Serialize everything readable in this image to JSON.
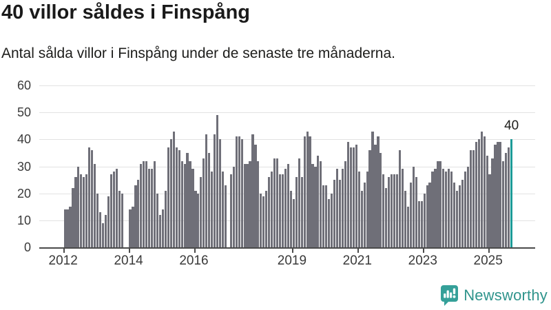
{
  "header": {
    "title": "40 villor såldes i Finspång",
    "subtitle": "Antal sålda villor i Finspång under de senaste tre månaderna."
  },
  "annotation": {
    "last_value_label": "40"
  },
  "footer": {
    "brand": "Newsworthy"
  },
  "chart_data": {
    "type": "bar",
    "title": "40 villor såldes i Finspång",
    "subtitle": "Antal sålda villor i Finspång under de senaste tre månaderna.",
    "frequency": "monthly",
    "start_period": "2012-01",
    "end_period": "2025-09",
    "ylim": [
      0,
      60
    ],
    "grid": true,
    "y_ticks": [
      0,
      10,
      20,
      30,
      40,
      50,
      60
    ],
    "x_ticks": [
      {
        "label": "2012",
        "month_index": 0
      },
      {
        "label": "2014",
        "month_index": 24
      },
      {
        "label": "2016",
        "month_index": 48
      },
      {
        "label": "2019",
        "month_index": 84
      },
      {
        "label": "2021",
        "month_index": 108
      },
      {
        "label": "2023",
        "month_index": 132
      },
      {
        "label": "2025",
        "month_index": 156
      }
    ],
    "values": [
      14,
      14,
      15,
      22,
      26,
      30,
      27,
      26,
      27,
      37,
      36,
      31,
      20,
      13,
      9,
      12,
      19,
      27,
      28,
      29,
      21,
      20,
      null,
      null,
      14,
      15,
      23,
      25,
      31,
      32,
      32,
      29,
      29,
      32,
      20,
      12,
      14,
      21,
      37,
      40,
      43,
      37,
      36,
      32,
      31,
      35,
      32,
      29,
      21,
      20,
      26,
      33,
      42,
      35,
      28,
      42,
      49,
      40,
      28,
      23,
      null,
      27,
      30,
      41,
      41,
      40,
      31,
      31,
      32,
      42,
      38,
      32,
      20,
      19,
      21,
      26,
      28,
      33,
      33,
      27,
      27,
      29,
      31,
      21,
      18,
      26,
      33,
      26,
      41,
      43,
      41,
      31,
      30,
      34,
      32,
      23,
      23,
      18,
      20,
      25,
      29,
      25,
      29,
      32,
      39,
      37,
      37,
      38,
      28,
      21,
      24,
      28,
      36,
      43,
      38,
      41,
      35,
      27,
      22,
      26,
      27,
      27,
      27,
      36,
      29,
      21,
      15,
      24,
      30,
      26,
      17,
      17,
      20,
      23,
      24,
      28,
      29,
      32,
      32,
      29,
      28,
      29,
      28,
      24,
      21,
      23,
      25,
      28,
      30,
      36,
      36,
      39,
      40,
      43,
      41,
      34,
      27,
      33,
      38,
      39,
      39,
      32,
      35,
      37,
      40
    ],
    "highlight_last_bar": true,
    "colors": {
      "bar": "#6f6f78",
      "highlight": "#1c9b98",
      "grid": "#e2e2e2",
      "axis": "#4a4a4a",
      "text": "#1d1d1b",
      "axis_text": "#3a3a3a",
      "brand_teal": "#35a099"
    }
  }
}
